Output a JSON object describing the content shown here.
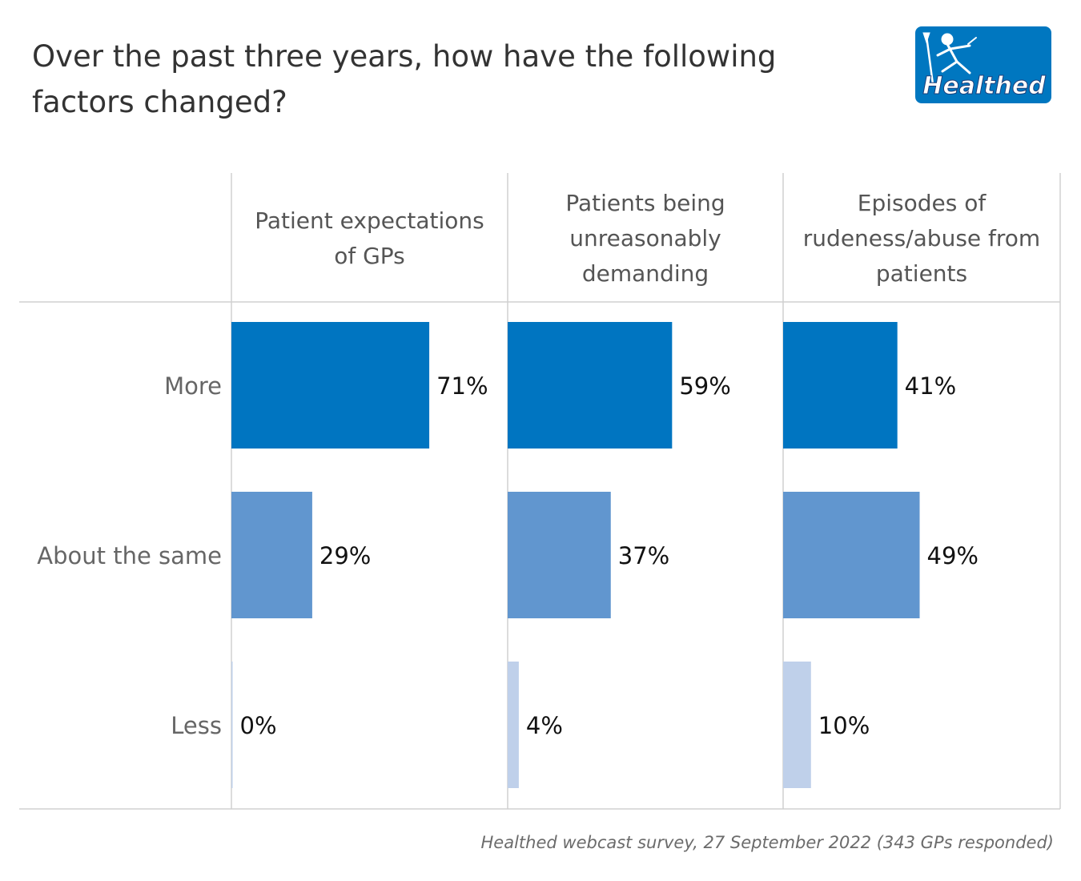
{
  "title": "Over the past three years, how have the following factors changed?",
  "logo": {
    "text": "Healthed",
    "color": "#0077c0"
  },
  "source": "Healthed webcast survey, 27 September 2022 (343 GPs responded)",
  "colors": {
    "More": "#0075c1",
    "About the same": "#6196cf",
    "Less": "#bfd0ea"
  },
  "chart_data": {
    "type": "bar",
    "orientation": "horizontal",
    "layout": "small-multiples",
    "title": "Over the past three years, how have the following factors changed?",
    "categories": [
      "More",
      "About the same",
      "Less"
    ],
    "panels": [
      {
        "name": "Patient expectations of GPs",
        "values": [
          71,
          29,
          0
        ],
        "labels": [
          "71%",
          "29%",
          "0%"
        ]
      },
      {
        "name": "Patients being unreasonably demanding",
        "values": [
          59,
          37,
          4
        ],
        "labels": [
          "59%",
          "37%",
          "4%"
        ]
      },
      {
        "name": "Episodes of rudeness/abuse from patients",
        "values": [
          41,
          49,
          10
        ],
        "labels": [
          "41%",
          "49%",
          "10%"
        ]
      }
    ],
    "header_lines": [
      [
        "Patient expectations",
        "of GPs"
      ],
      [
        "Patients being",
        "unreasonably",
        "demanding"
      ],
      [
        "Episodes of",
        "rudeness/abuse from",
        "patients"
      ]
    ],
    "xlim": [
      0,
      100
    ],
    "unit": "%",
    "grid": false,
    "legend": "none"
  }
}
